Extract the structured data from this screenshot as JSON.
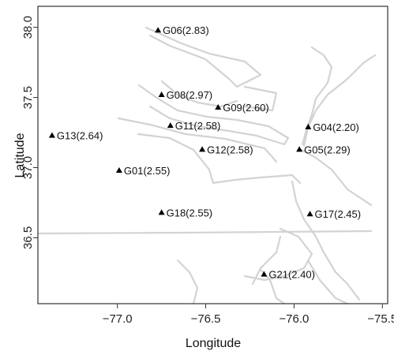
{
  "chart_data": {
    "type": "scatter",
    "title": "",
    "xlabel": "Longitude",
    "ylabel": "Latitude",
    "xlim": [
      -77.45,
      -75.47
    ],
    "ylim": [
      36.03,
      38.15
    ],
    "x_ticks": [
      "-77.0",
      "-76.5",
      "-76.0",
      "-75.5"
    ],
    "x_tick_values": [
      -77.0,
      -76.5,
      -76.0,
      -75.5
    ],
    "y_ticks": [
      "36.5",
      "37.0",
      "37.5",
      "38.0"
    ],
    "y_tick_values": [
      36.5,
      37.0,
      37.5,
      38.0
    ],
    "marker": "triangle",
    "background_layer": "coastlines and state boundary in light gray",
    "colors": {
      "points": "#000000",
      "coast": "#d3d3d3",
      "frame": "#333333"
    },
    "points": [
      {
        "label": "G06(2.83)",
        "lon": -76.77,
        "lat": 37.98
      },
      {
        "label": "G08(2.97)",
        "lon": -76.75,
        "lat": 37.52
      },
      {
        "label": "G09(2.60)",
        "lon": -76.43,
        "lat": 37.43
      },
      {
        "label": "G11(2.58)",
        "lon": -76.7,
        "lat": 37.3
      },
      {
        "label": "G04(2.20)",
        "lon": -75.92,
        "lat": 37.29
      },
      {
        "label": "G13(2.64)",
        "lon": -77.37,
        "lat": 37.23
      },
      {
        "label": "G12(2.58)",
        "lon": -76.52,
        "lat": 37.13
      },
      {
        "label": "G05(2.29)",
        "lon": -75.97,
        "lat": 37.13
      },
      {
        "label": "G01(2.55)",
        "lon": -76.99,
        "lat": 36.98
      },
      {
        "label": "G18(2.55)",
        "lon": -76.75,
        "lat": 36.68
      },
      {
        "label": "G17(2.45)",
        "lon": -75.91,
        "lat": 36.67
      },
      {
        "label": "G21(2.40)",
        "lon": -76.17,
        "lat": 36.24
      }
    ]
  }
}
